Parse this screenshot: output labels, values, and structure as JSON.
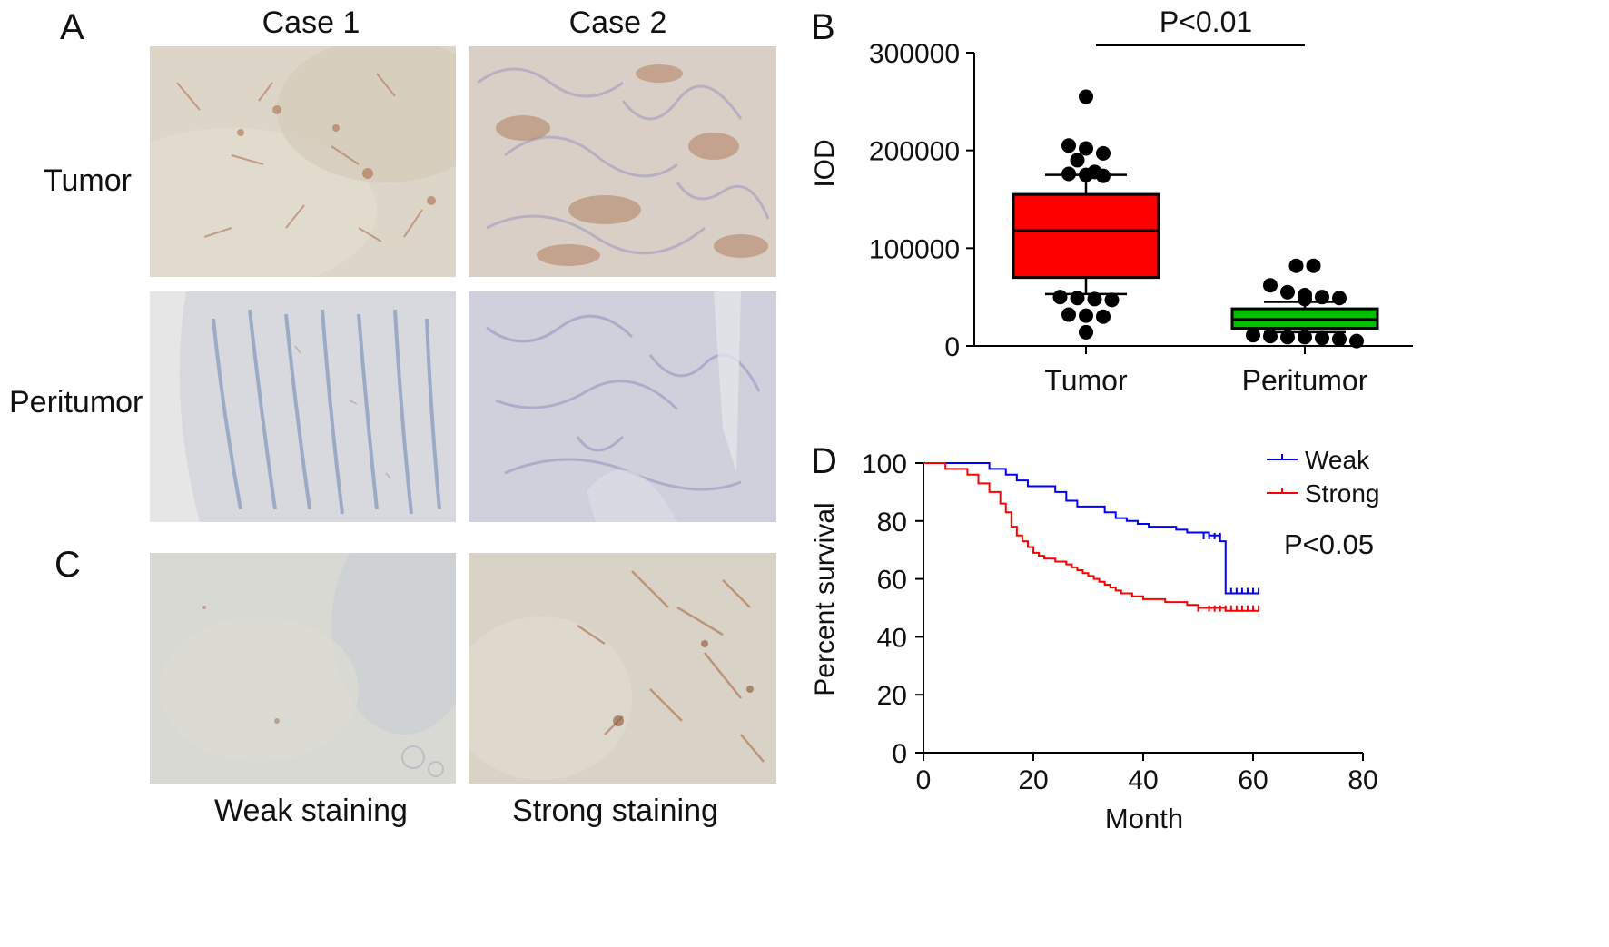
{
  "panel_letters": {
    "a": "A",
    "b": "B",
    "c": "C",
    "d": "D"
  },
  "panel_a": {
    "columns": [
      "Case 1",
      "Case 2"
    ],
    "rows": [
      "Tumor",
      "Peritumor"
    ]
  },
  "panel_c": {
    "captions": [
      "Weak staining",
      "Strong staining"
    ]
  },
  "colors": {
    "tumor_box": "#ff0000",
    "peritumor_box": "#00c000",
    "weak_line": "#0000ff",
    "strong_line": "#ff0000"
  },
  "chart_data": [
    {
      "type": "box",
      "ylabel": "IOD",
      "ylim": [
        0,
        300000
      ],
      "yticks": [
        0,
        100000,
        200000,
        300000
      ],
      "categories": [
        "Tumor",
        "Peritumor"
      ],
      "annotation": "P<0.01",
      "boxes": [
        {
          "category": "Tumor",
          "q1": 70000,
          "median": 118000,
          "q3": 155000,
          "whisker_low": 53000,
          "whisker_high": 175000,
          "outliers": [
            255000,
            205000,
            202000,
            197000,
            190000,
            178000,
            176000,
            175000,
            174000,
            50000,
            49000,
            48000,
            47000,
            32000,
            31000,
            30000,
            14000
          ]
        },
        {
          "category": "Peritumor",
          "q1": 18000,
          "median": 27000,
          "q3": 38000,
          "whisker_low": 14000,
          "whisker_high": 45000,
          "outliers": [
            82000,
            82000,
            62000,
            55000,
            52000,
            50000,
            49000,
            48000,
            11000,
            10000,
            9000,
            9000,
            8000,
            7000,
            5000
          ]
        }
      ]
    },
    {
      "type": "line",
      "xlabel": "Month",
      "ylabel": "Percent survival",
      "xlim": [
        0,
        80
      ],
      "ylim": [
        0,
        100
      ],
      "xticks": [
        0,
        20,
        40,
        60,
        80
      ],
      "yticks": [
        0,
        20,
        40,
        60,
        80,
        100
      ],
      "annotation": "P<0.05",
      "legend_position": "top-right",
      "series": [
        {
          "name": "Weak",
          "x": [
            0,
            10,
            12,
            15,
            17,
            19,
            22,
            24,
            26,
            28,
            30,
            33,
            35,
            37,
            39,
            41,
            44,
            46,
            48,
            52,
            54,
            55,
            61
          ],
          "y": [
            100,
            100,
            98,
            96,
            94,
            92,
            92,
            90,
            87,
            85,
            85,
            83,
            81,
            80,
            79,
            78,
            78,
            77,
            76,
            75,
            73,
            55,
            55
          ],
          "censor_x": [
            51,
            52,
            53,
            54,
            56,
            57,
            58,
            59,
            60,
            61
          ],
          "censor_y": [
            74,
            74,
            74,
            74,
            55,
            55,
            55,
            55,
            55,
            55
          ]
        },
        {
          "name": "Strong",
          "x": [
            0,
            4,
            8,
            10,
            12,
            14,
            15,
            16,
            17,
            18,
            19,
            20,
            21,
            22,
            24,
            26,
            27,
            28,
            29,
            30,
            31,
            32,
            33,
            34,
            35,
            36,
            37,
            38,
            40,
            42,
            44,
            46,
            48,
            50,
            55,
            61
          ],
          "y": [
            100,
            98,
            96,
            93,
            90,
            86,
            83,
            78,
            75,
            73,
            71,
            69,
            68,
            67,
            66,
            65,
            64,
            63,
            62,
            61,
            60,
            59,
            58,
            57,
            56,
            55,
            55,
            54,
            53,
            53,
            52,
            52,
            51,
            50,
            49,
            49
          ],
          "censor_x": [
            50,
            52,
            53,
            54,
            55,
            56,
            57,
            58,
            59,
            60,
            61
          ],
          "censor_y": [
            49,
            49,
            49,
            49,
            49,
            49,
            49,
            49,
            49,
            49,
            49
          ]
        }
      ]
    }
  ]
}
